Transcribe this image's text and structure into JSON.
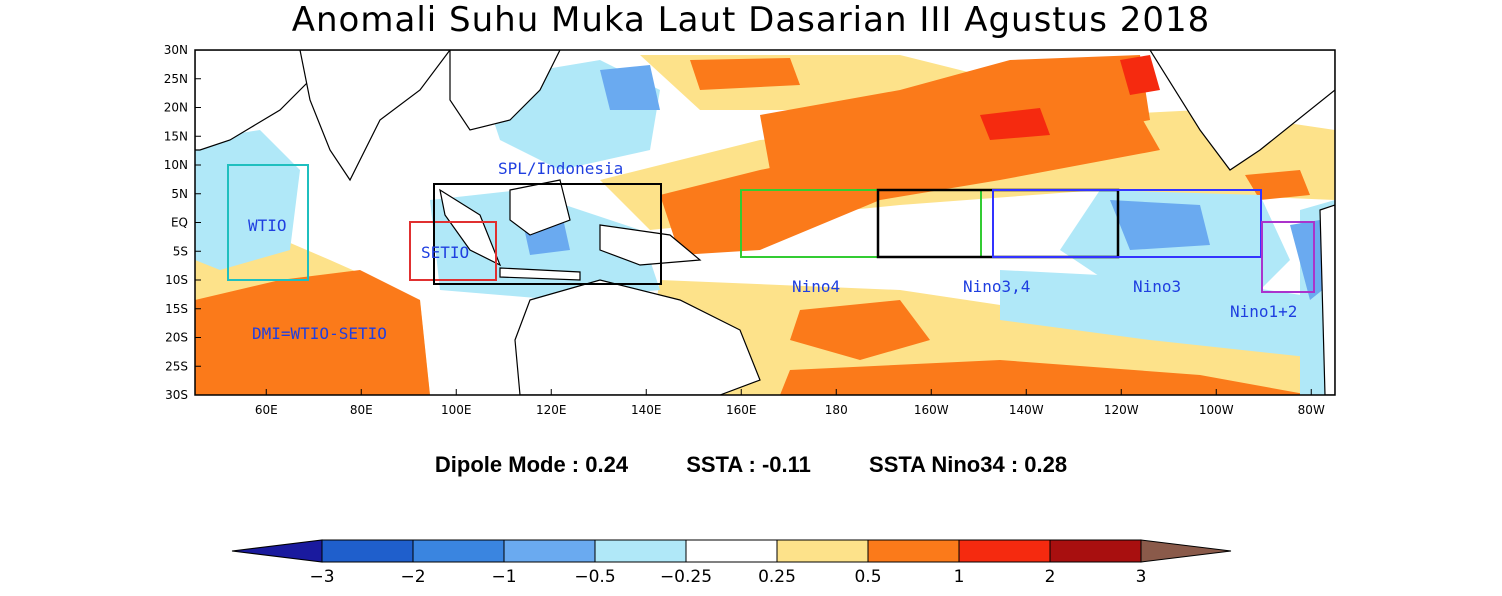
{
  "title": "Anomali Suhu Muka Laut Dasarian III Agustus 2018",
  "map": {
    "lat_labels": [
      "30N",
      "25N",
      "20N",
      "15N",
      "10N",
      "5N",
      "EQ",
      "5S",
      "10S",
      "15S",
      "20S",
      "25S",
      "30S"
    ],
    "lon_labels": [
      "60E",
      "80E",
      "100E",
      "120E",
      "140E",
      "160E",
      "180",
      "160W",
      "140W",
      "120W",
      "100W",
      "80W"
    ],
    "lon_range": [
      45,
      285
    ],
    "lat_range": [
      -30,
      30
    ],
    "regions": [
      {
        "label": "WTIO",
        "lon": [
          52,
          69
        ],
        "lat": [
          -10,
          10
        ],
        "color": "#1fbfbf"
      },
      {
        "label": "SETIO",
        "lon": [
          90,
          110
        ],
        "lat": [
          -10,
          0
        ],
        "color": "#e03030"
      },
      {
        "label": "SPL/Indonesia",
        "lon": [
          96,
          144
        ],
        "lat": [
          -11,
          7
        ],
        "color": "#000000"
      },
      {
        "label": "Nino4",
        "lon": [
          160,
          210
        ],
        "lat": [
          -5,
          5
        ],
        "color": "#33cc33"
      },
      {
        "label": "Nino3,4",
        "lon": [
          190,
          240
        ],
        "lat": [
          -5,
          5
        ],
        "color": "#000000"
      },
      {
        "label": "Nino3",
        "lon": [
          210,
          270
        ],
        "lat": [
          -5,
          5
        ],
        "color": "#3333ff"
      },
      {
        "label": "Nino1+2",
        "lon": [
          270,
          280
        ],
        "lat": [
          -10,
          0
        ],
        "color": "#aa33cc"
      }
    ],
    "dmi_label": "DMI=WTIO-SETIO"
  },
  "stats": {
    "dipole_label": "Dipole Mode : 0.24",
    "ssta_label": "SSTA : -0.11",
    "nino34_label": "SSTA Nino34 : 0.28"
  },
  "colorbar": {
    "labels": [
      "−3",
      "−2",
      "−1",
      "−0.5",
      "−0.25",
      "0.25",
      "0.5",
      "1",
      "2",
      "3"
    ],
    "colors": [
      "#1a1a9e",
      "#1f5fcc",
      "#3a85e0",
      "#6aaaf0",
      "#b0e8f8",
      "#ffffff",
      "#fde28a",
      "#fb7a1a",
      "#f52a0f",
      "#a80f0f",
      "#8a5a4a"
    ]
  }
}
